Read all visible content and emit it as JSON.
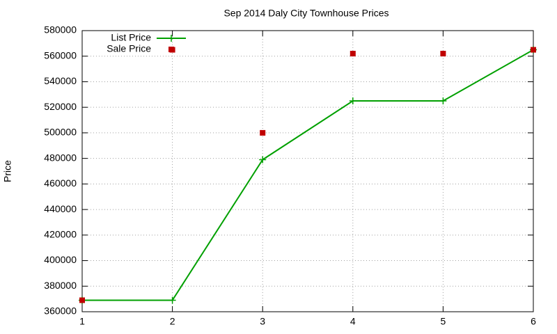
{
  "chart_data": {
    "type": "line",
    "title": "Sep 2014 Daly City Townhouse Prices",
    "y_label": "Price",
    "x": [
      1,
      2,
      3,
      4,
      5,
      6
    ],
    "xlim": [
      1,
      6
    ],
    "xticks": [
      1,
      2,
      3,
      4,
      5,
      6
    ],
    "ylim": [
      360000,
      580000
    ],
    "yticks": [
      360000,
      380000,
      400000,
      420000,
      440000,
      460000,
      480000,
      500000,
      520000,
      540000,
      560000,
      580000
    ],
    "grid": true,
    "legend": "top-left",
    "series": [
      {
        "name": "List Price",
        "color": "#00a000",
        "line": true,
        "marker": "plus",
        "values": [
          369000,
          369000,
          479000,
          525000,
          525000,
          565000
        ]
      },
      {
        "name": "Sale Price",
        "color": "#c00000",
        "line": false,
        "marker": "square",
        "values": [
          369000,
          565000,
          500000,
          562000,
          562000,
          565000
        ]
      }
    ]
  }
}
